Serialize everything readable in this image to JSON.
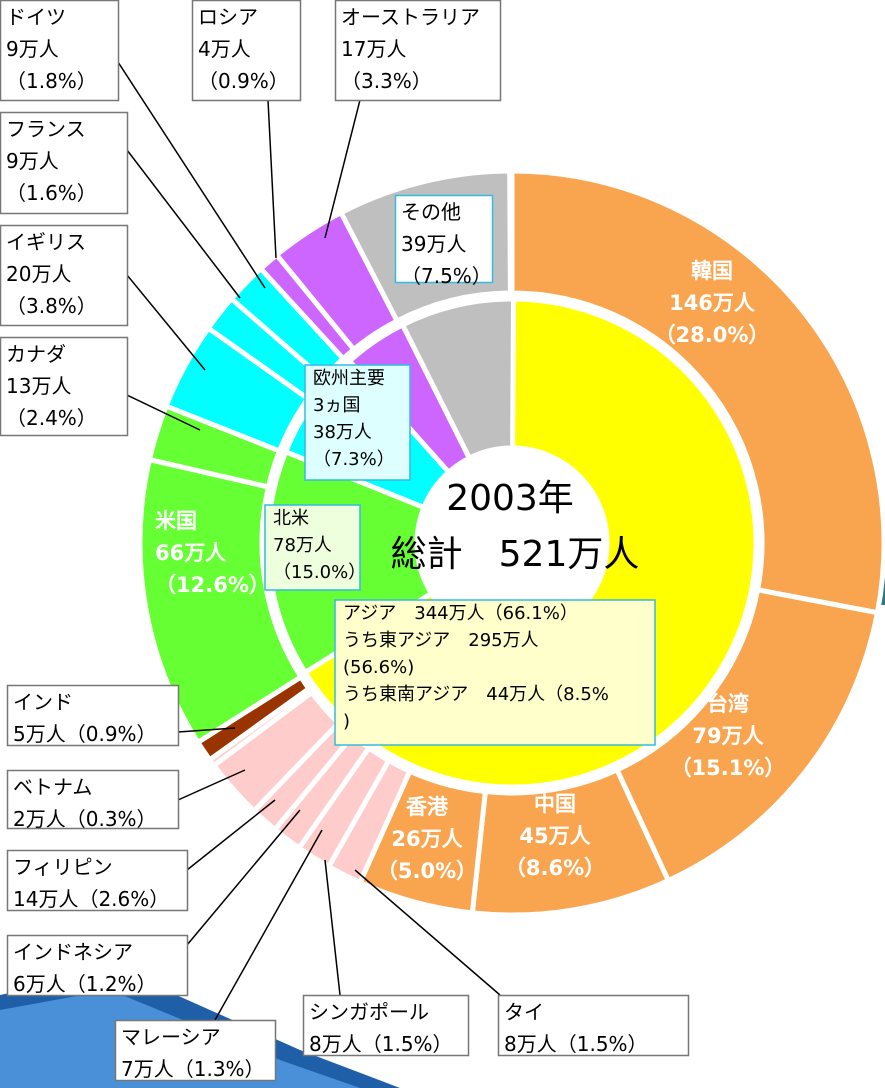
{
  "chart_data": {
    "type": "donut",
    "title": "2003年",
    "subtitle": "総計　521万人",
    "outer": {
      "categories": [
        "韓国",
        "台湾",
        "中国",
        "香港",
        "タイ",
        "シンガポール",
        "マレーシア",
        "インドネシア",
        "フィリピン",
        "ベトナム",
        "インド",
        "米国",
        "カナダ",
        "イギリス",
        "フランス",
        "ドイツ",
        "ロシア",
        "オーストラリア",
        "その他"
      ],
      "values": [
        28.0,
        15.1,
        8.6,
        5.0,
        1.5,
        1.5,
        1.3,
        1.2,
        2.6,
        0.3,
        0.9,
        12.6,
        2.4,
        3.8,
        1.6,
        1.8,
        0.9,
        3.3,
        7.5
      ],
      "value_labels": [
        "（28.0%）",
        "（15.1%）",
        "（8.6%）",
        "（5.0%）",
        "（1.5%）",
        "（1.5%）",
        "（1.3%）",
        "（1.2%）",
        "（2.6%）",
        "（0.3%）",
        "（0.9%）",
        "（12.6%）",
        "（2.4%）",
        "（3.8%）",
        "（1.6%）",
        "（1.8%）",
        "（0.9%）",
        "（3.3%）",
        "（7.5%）"
      ],
      "counts": [
        146,
        79,
        45,
        26,
        8,
        8,
        7,
        6,
        14,
        2,
        5,
        66,
        13,
        20,
        9,
        9,
        4,
        17,
        39
      ],
      "count_labels": [
        "146万人",
        "79万人",
        "45万人",
        "26万人",
        "8万人",
        "8万人",
        "7万人",
        "6万人",
        "14万人",
        "2万人",
        "5万人",
        "66万人",
        "13万人",
        "20万人",
        "9万人",
        "9万人",
        "4万人",
        "17万人",
        "39万人"
      ],
      "colors": [
        "#f9a54f",
        "#f9a54f",
        "#f9a54f",
        "#f9a54f",
        "#ffcccc",
        "#ffcccc",
        "#ffcccc",
        "#ffcccc",
        "#ffcccc",
        "#ffcccc",
        "#993300",
        "#66ff33",
        "#66ff33",
        "#00ffff",
        "#00ffff",
        "#00ffff",
        "#cc66ff",
        "#cc66ff",
        "#bfbfbf"
      ]
    },
    "inner": {
      "values": [
        66.1,
        15.0,
        7.3,
        4.2,
        7.5
      ],
      "colors": [
        "#ffff00",
        "#66ff33",
        "#00ffff",
        "#cc66ff",
        "#bfbfbf"
      ],
      "labels": [
        [
          "アジア　344万人（66.1%）",
          "うち東アジア　295万人",
          "(56.6%)",
          "うち東南アジア　44万人（8.5%",
          ")"
        ],
        [
          "北米",
          "78万人",
          "（15.0%）"
        ],
        [
          "欧州主要",
          "3ヵ国",
          "38万人",
          "（7.3%）"
        ],
        null,
        null
      ]
    }
  }
}
